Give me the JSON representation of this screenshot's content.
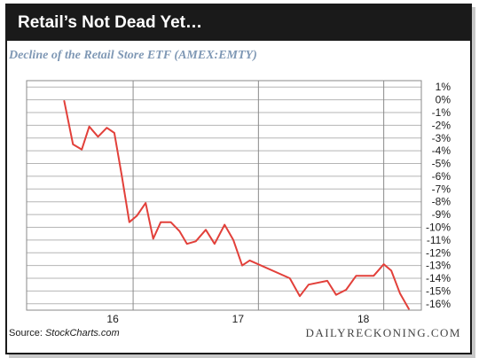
{
  "header": {
    "title": "Retail’s Not Dead Yet…"
  },
  "source": {
    "label": "Source: ",
    "name": "StockCharts.com"
  },
  "brand": "DAILYRECKONING.COM",
  "colors": {
    "line": "#e2403a",
    "grid": "#b5b5b5",
    "title_bar": "#1a1a1a",
    "subtitle": "#7f98b5"
  },
  "chart_data": {
    "type": "line",
    "title": "Decline of the Retail Store ETF (AMEX:EMTY)",
    "xlabel": "",
    "ylabel": "",
    "x_ticks": [
      {
        "label": "16",
        "x": 2016.0
      },
      {
        "label": "17",
        "x": 2017.0
      },
      {
        "label": "18",
        "x": 2018.0
      }
    ],
    "x_lim": [
      2015.15,
      2018.3
    ],
    "ylim": [
      -16.5,
      1.5
    ],
    "y_ticks": [
      1,
      0,
      -1,
      -2,
      -3,
      -4,
      -5,
      -6,
      -7,
      -8,
      -9,
      -10,
      -11,
      -12,
      -13,
      -14,
      -15,
      -16
    ],
    "y_tick_format": "percent",
    "grid": {
      "horizontal": true,
      "vertical_at_years": true
    },
    "series": [
      {
        "values": [
          {
            "x": 2015.45,
            "y": -0.1
          },
          {
            "x": 2015.52,
            "y": -3.5
          },
          {
            "x": 2015.59,
            "y": -3.9
          },
          {
            "x": 2015.65,
            "y": -2.1
          },
          {
            "x": 2015.72,
            "y": -2.9
          },
          {
            "x": 2015.79,
            "y": -2.2
          },
          {
            "x": 2015.85,
            "y": -2.6
          },
          {
            "x": 2015.91,
            "y": -6.0
          },
          {
            "x": 2015.97,
            "y": -9.6
          },
          {
            "x": 2016.03,
            "y": -9.1
          },
          {
            "x": 2016.1,
            "y": -8.1
          },
          {
            "x": 2016.16,
            "y": -10.9
          },
          {
            "x": 2016.22,
            "y": -9.6
          },
          {
            "x": 2016.3,
            "y": -9.6
          },
          {
            "x": 2016.37,
            "y": -10.3
          },
          {
            "x": 2016.43,
            "y": -11.3
          },
          {
            "x": 2016.5,
            "y": -11.1
          },
          {
            "x": 2016.58,
            "y": -10.2
          },
          {
            "x": 2016.65,
            "y": -11.3
          },
          {
            "x": 2016.73,
            "y": -9.8
          },
          {
            "x": 2016.8,
            "y": -11.0
          },
          {
            "x": 2016.87,
            "y": -13.0
          },
          {
            "x": 2016.93,
            "y": -12.6
          },
          {
            "x": 2017.25,
            "y": -14.0
          },
          {
            "x": 2017.33,
            "y": -15.4
          },
          {
            "x": 2017.4,
            "y": -14.5
          },
          {
            "x": 2017.55,
            "y": -14.2
          },
          {
            "x": 2017.62,
            "y": -15.3
          },
          {
            "x": 2017.7,
            "y": -14.9
          },
          {
            "x": 2017.78,
            "y": -13.8
          },
          {
            "x": 2017.92,
            "y": -13.8
          },
          {
            "x": 2018.0,
            "y": -12.9
          },
          {
            "x": 2018.06,
            "y": -13.4
          },
          {
            "x": 2018.13,
            "y": -15.2
          },
          {
            "x": 2018.2,
            "y": -16.4
          }
        ]
      }
    ]
  }
}
